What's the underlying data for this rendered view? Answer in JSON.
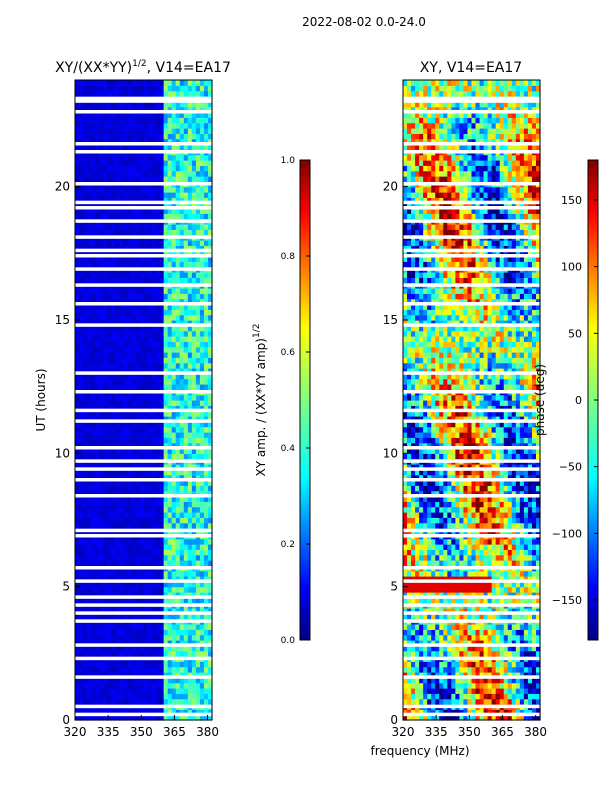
{
  "figure": {
    "suptitle": "2022-08-02 0.0-24.0",
    "shared_xlabel": "frequency (MHz)"
  },
  "colors": {
    "jet": [
      "#00007f",
      "#0000ff",
      "#007fff",
      "#00ffff",
      "#7fff7f",
      "#ffff00",
      "#ff7f00",
      "#ff0000",
      "#7f0000"
    ],
    "gap": "#ffffff"
  },
  "chart_data": [
    {
      "type": "heatmap",
      "title_main": "XY/(XX*YY)",
      "title_sup": "1/2",
      "title_tail": ", V14=EA17",
      "xlabel": "",
      "ylabel": "UT (hours)",
      "xlim": [
        320,
        382
      ],
      "ylim": [
        0,
        24
      ],
      "xticks": [
        320,
        335,
        350,
        365,
        380
      ],
      "yticks": [
        0,
        5,
        10,
        15,
        20
      ],
      "colorbar": {
        "label_main": "XY amp. / (XX*YY amp)",
        "label_sup": "1/2",
        "range": [
          0.0,
          1.0
        ],
        "ticks": [
          "0.0",
          "0.2",
          "0.4",
          "0.6",
          "0.8",
          "1.0"
        ]
      },
      "description": "mostly low amplitude (~0.05) except band near 360-380 MHz (~0.3-0.5)",
      "white_gap_hours": [
        0.2,
        0.5,
        1.6,
        2.3,
        2.8,
        3.7,
        4.0,
        4.3,
        4.6,
        5.2,
        5.7,
        6.9,
        7.1,
        8.4,
        9.0,
        9.4,
        9.7,
        10.2,
        11.2,
        11.6,
        12.3,
        13.0,
        14.8,
        15.6,
        16.3,
        16.9,
        17.4,
        17.6,
        18.1,
        18.7,
        19.2,
        19.4,
        20.1,
        21.3,
        21.6,
        22.8,
        23.2,
        23.3
      ]
    },
    {
      "type": "heatmap",
      "title_main": "XY, V14=EA17",
      "title_sup": "",
      "title_tail": "",
      "xlabel": "frequency (MHz)",
      "ylabel": "",
      "xlim": [
        320,
        382
      ],
      "ylim": [
        0,
        24
      ],
      "xticks": [
        320,
        335,
        350,
        365,
        380
      ],
      "yticks": [
        0,
        5,
        10,
        15,
        20
      ],
      "colorbar": {
        "label_main": "phase (deg)",
        "label_sup": "",
        "range": [
          -180,
          180
        ],
        "ticks": [
          "−150",
          "−100",
          "−50",
          "0",
          "50",
          "100",
          "150"
        ],
        "tick_values": [
          -150,
          -100,
          -50,
          0,
          50,
          100,
          150
        ]
      },
      "description": "phase varies widely across -180..180 deg, strong red band near 5 h",
      "white_gap_hours": [
        0.2,
        0.5,
        1.6,
        2.3,
        2.8,
        3.7,
        4.0,
        4.3,
        4.6,
        5.2,
        5.7,
        6.9,
        7.1,
        8.4,
        9.0,
        9.4,
        9.7,
        10.2,
        11.2,
        11.6,
        12.3,
        13.0,
        14.8,
        15.6,
        16.3,
        16.9,
        17.4,
        17.6,
        18.1,
        18.7,
        19.2,
        19.4,
        20.1,
        21.3,
        21.6,
        22.8,
        23.2,
        23.3
      ]
    }
  ]
}
